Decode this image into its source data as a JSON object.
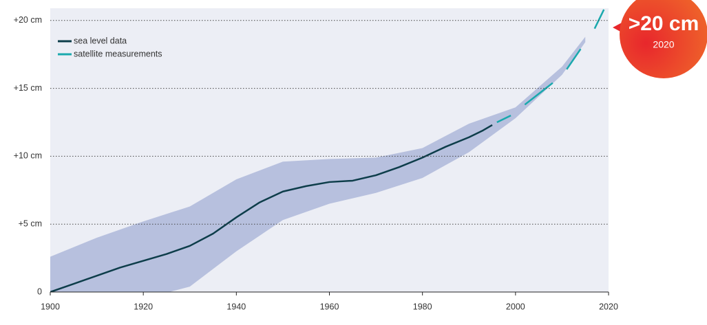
{
  "chart_data": {
    "type": "line",
    "x": [
      1900,
      1905,
      1910,
      1915,
      1920,
      1925,
      1930,
      1935,
      1940,
      1945,
      1950,
      1955,
      1960,
      1965,
      1970,
      1975,
      1980,
      1985,
      1990,
      1993,
      1995,
      1996,
      1999,
      2000,
      2002,
      2005,
      2008,
      2010,
      2011,
      2014,
      2015,
      2017,
      2019
    ],
    "series": [
      {
        "name": "sea level data",
        "color": "#0d3d4a",
        "values": [
          0,
          0.6,
          1.2,
          1.8,
          2.3,
          2.8,
          3.4,
          4.3,
          5.5,
          6.6,
          7.4,
          7.8,
          8.1,
          8.2,
          8.6,
          9.2,
          9.9,
          10.7,
          11.4,
          11.9,
          12.3,
          null,
          null,
          13.2,
          null,
          14.6,
          null,
          16.3,
          null,
          null,
          18.6,
          null,
          null
        ]
      },
      {
        "name": "satellite measurements",
        "color": "#1aa9ad",
        "values": [
          null,
          null,
          null,
          null,
          null,
          null,
          null,
          null,
          null,
          null,
          null,
          null,
          null,
          null,
          null,
          null,
          null,
          null,
          null,
          12.0,
          null,
          12.5,
          13.0,
          null,
          13.8,
          14.6,
          15.4,
          null,
          16.4,
          17.9,
          null,
          19.4,
          20.8
        ]
      }
    ],
    "band": {
      "color": "#b7c0de",
      "x": [
        1900,
        1910,
        1920,
        1930,
        1940,
        1950,
        1960,
        1970,
        1980,
        1990,
        2000,
        2010,
        2015
      ],
      "upper": [
        2.6,
        4.0,
        5.2,
        6.3,
        8.3,
        9.6,
        9.8,
        9.9,
        10.6,
        12.4,
        13.6,
        16.6,
        18.8
      ],
      "lower": [
        -2.5,
        -1.3,
        -0.5,
        0.4,
        3.0,
        5.3,
        6.5,
        7.3,
        8.4,
        10.3,
        12.8,
        16.0,
        18.4
      ]
    },
    "xlim": [
      1900,
      2020
    ],
    "xticks": [
      1900,
      1920,
      1940,
      1960,
      1980,
      2000,
      2020
    ],
    "ylim": [
      0,
      20.9
    ],
    "yticks": [
      0,
      {
        "value": 5,
        "label": "+5 cm"
      },
      {
        "value": 10,
        "label": "+10 cm"
      },
      {
        "value": 15,
        "label": "+15 cm"
      },
      {
        "value": 20,
        "label": "+20 cm"
      }
    ],
    "grid": true,
    "legend": "top-left",
    "annotation": {
      "label": ">20 cm",
      "sublabel": "2020"
    }
  }
}
